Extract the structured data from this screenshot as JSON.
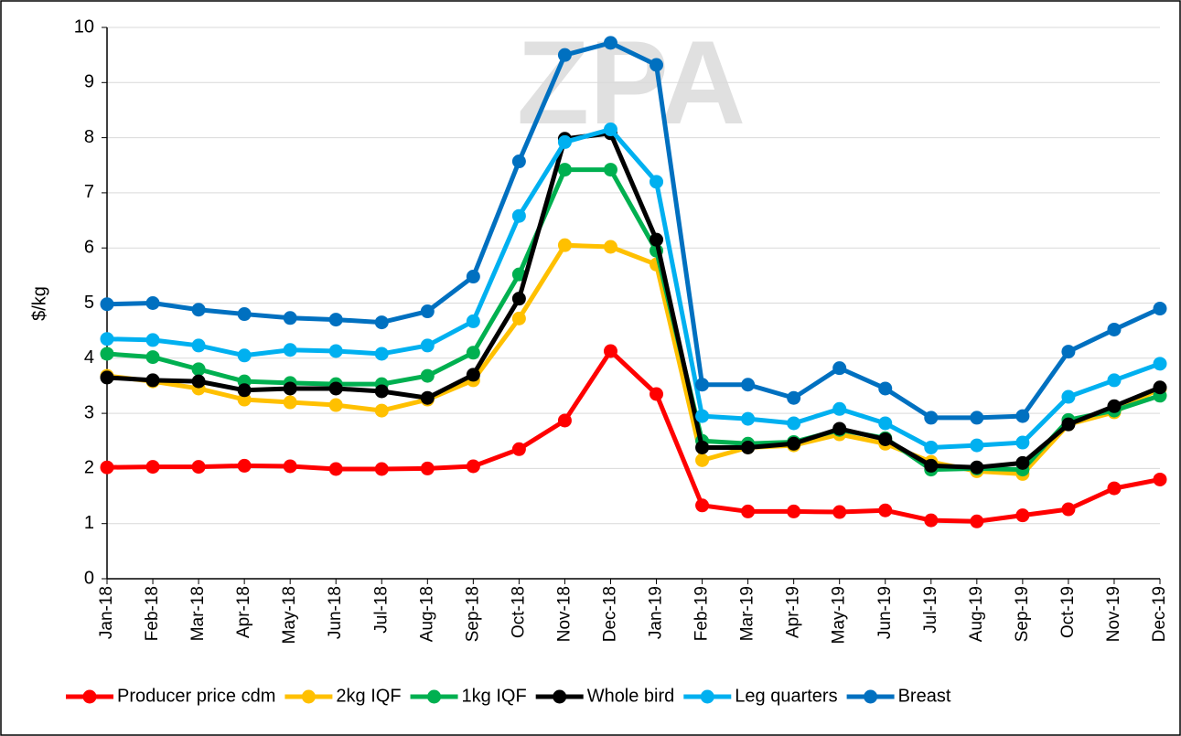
{
  "chart_data": {
    "type": "line",
    "watermark": "ZPA",
    "y_label": "$/kg",
    "categories": [
      "Jan-18",
      "Feb-18",
      "Mar-18",
      "Apr-18",
      "May-18",
      "Jun-18",
      "Jul-18",
      "Aug-18",
      "Sep-18",
      "Oct-18",
      "Nov-18",
      "Dec-18",
      "Jan-19",
      "Feb-19",
      "Mar-19",
      "Apr-19",
      "May-19",
      "Jun-19",
      "Jul-19",
      "Aug-19",
      "Sep-19",
      "Oct-19",
      "Nov-19",
      "Dec-19"
    ],
    "ylim": [
      0,
      10
    ],
    "yticks": [
      0,
      1,
      2,
      3,
      4,
      5,
      6,
      7,
      8,
      9,
      10
    ],
    "grid": true,
    "legend": "bottom",
    "series": [
      {
        "name": "Producer price cdm",
        "color": "#ff0000",
        "values": [
          2.02,
          2.03,
          2.03,
          2.05,
          2.04,
          1.99,
          1.99,
          2.0,
          2.04,
          2.35,
          2.87,
          4.13,
          3.35,
          1.33,
          1.22,
          1.22,
          1.21,
          1.24,
          1.06,
          1.04,
          1.15,
          1.26,
          1.64,
          1.8
        ]
      },
      {
        "name": "2kg IQF",
        "color": "#ffc000",
        "values": [
          3.68,
          3.58,
          3.45,
          3.25,
          3.2,
          3.15,
          3.05,
          3.25,
          3.6,
          4.72,
          6.05,
          6.02,
          5.7,
          2.15,
          2.38,
          2.42,
          2.62,
          2.45,
          2.12,
          1.95,
          1.9,
          2.8,
          3.02,
          3.45
        ]
      },
      {
        "name": "1kg IQF",
        "color": "#00b050",
        "values": [
          4.08,
          4.02,
          3.8,
          3.58,
          3.55,
          3.53,
          3.53,
          3.68,
          4.1,
          5.52,
          7.42,
          7.42,
          5.95,
          2.5,
          2.45,
          2.48,
          2.7,
          2.55,
          1.98,
          2.0,
          1.98,
          2.88,
          3.05,
          3.32
        ]
      },
      {
        "name": "Whole bird",
        "color": "#000000",
        "values": [
          3.65,
          3.6,
          3.58,
          3.42,
          3.45,
          3.45,
          3.4,
          3.28,
          3.7,
          5.08,
          7.98,
          8.08,
          6.15,
          2.38,
          2.38,
          2.45,
          2.72,
          2.53,
          2.05,
          2.02,
          2.1,
          2.8,
          3.13,
          3.47
        ]
      },
      {
        "name": "Leg quarters",
        "color": "#00b0f0",
        "values": [
          4.35,
          4.33,
          4.23,
          4.05,
          4.15,
          4.13,
          4.08,
          4.23,
          4.67,
          6.58,
          7.92,
          8.15,
          7.2,
          2.95,
          2.9,
          2.82,
          3.08,
          2.82,
          2.38,
          2.42,
          2.47,
          3.3,
          3.6,
          3.9
        ]
      },
      {
        "name": "Breast",
        "color": "#0070c0",
        "values": [
          4.98,
          5.0,
          4.88,
          4.8,
          4.73,
          4.7,
          4.65,
          4.85,
          5.48,
          7.57,
          9.5,
          9.72,
          9.32,
          3.52,
          3.52,
          3.28,
          3.82,
          3.45,
          2.92,
          2.92,
          2.95,
          4.12,
          4.52,
          4.9
        ]
      }
    ]
  }
}
